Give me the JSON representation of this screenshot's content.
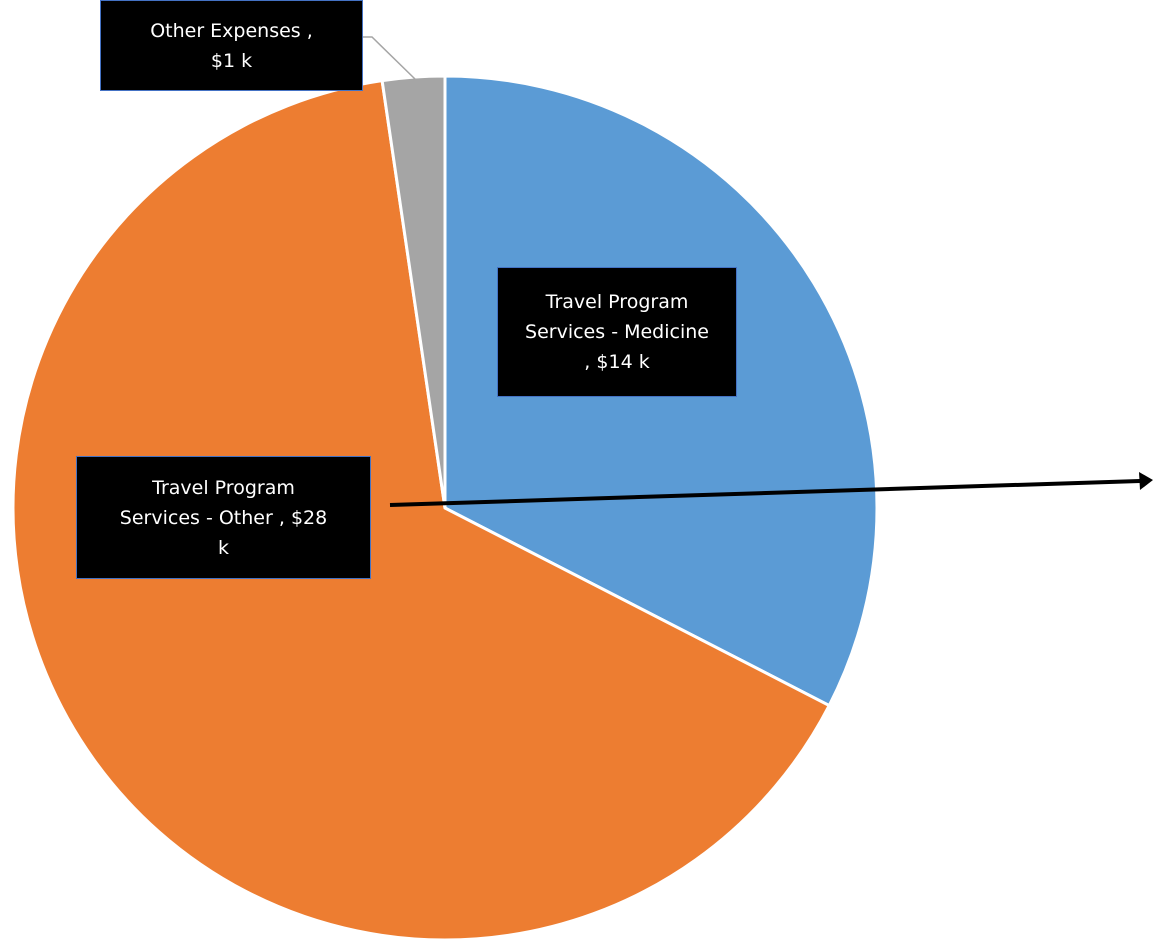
{
  "chart_data": {
    "type": "pie",
    "categories": [
      "Travel Program Services - Medicine",
      "Travel Program Services - Other",
      "Other Expenses"
    ],
    "values": [
      14,
      28,
      1
    ],
    "value_labels": [
      "$14 k",
      "$28  k",
      "$1 k"
    ],
    "label_separator": " , ",
    "colors": [
      "#5b9bd5",
      "#ed7d31",
      "#a5a5a5"
    ]
  }
}
